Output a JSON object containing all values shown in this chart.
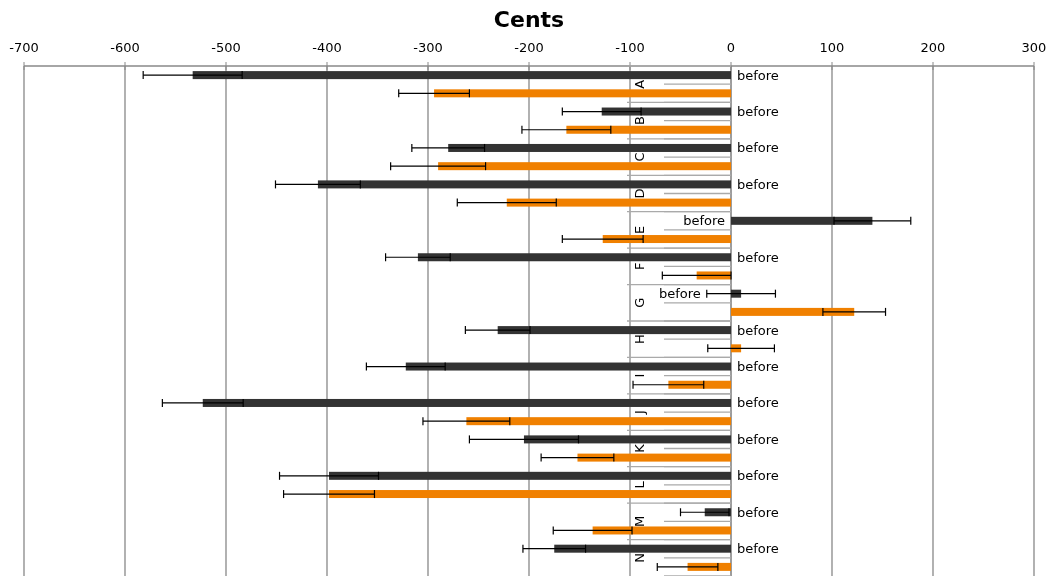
{
  "chart_data": {
    "type": "bar",
    "orientation": "horizontal",
    "title": "Cents",
    "categories": [
      "A",
      "B",
      "C",
      "D",
      "E",
      "F",
      "G",
      "H",
      "I",
      "J",
      "K",
      "L",
      "M",
      "N"
    ],
    "series": [
      {
        "name": "before",
        "color": "#333333",
        "values": [
          -533,
          -128,
          -280,
          -409,
          140,
          -310,
          10,
          -231,
          -322,
          -523,
          -205,
          -398,
          -26,
          -175
        ],
        "errors": [
          49,
          39,
          36,
          42,
          38,
          32,
          34,
          32,
          39,
          40,
          54,
          49,
          24,
          31
        ]
      },
      {
        "color": "#f08000",
        "values": [
          -294,
          -163,
          -290,
          -222,
          -127,
          -34,
          122,
          10,
          -62,
          -262,
          -152,
          -398,
          -137,
          -43
        ],
        "errors": [
          35,
          44,
          47,
          49,
          40,
          34,
          31,
          33,
          35,
          43,
          36,
          45,
          39,
          30
        ]
      }
    ],
    "xlim": [
      -700,
      300
    ],
    "xticks": [
      -700,
      -600,
      -500,
      -400,
      -300,
      -200,
      -100,
      0,
      100,
      200,
      300
    ],
    "grid": "x"
  }
}
